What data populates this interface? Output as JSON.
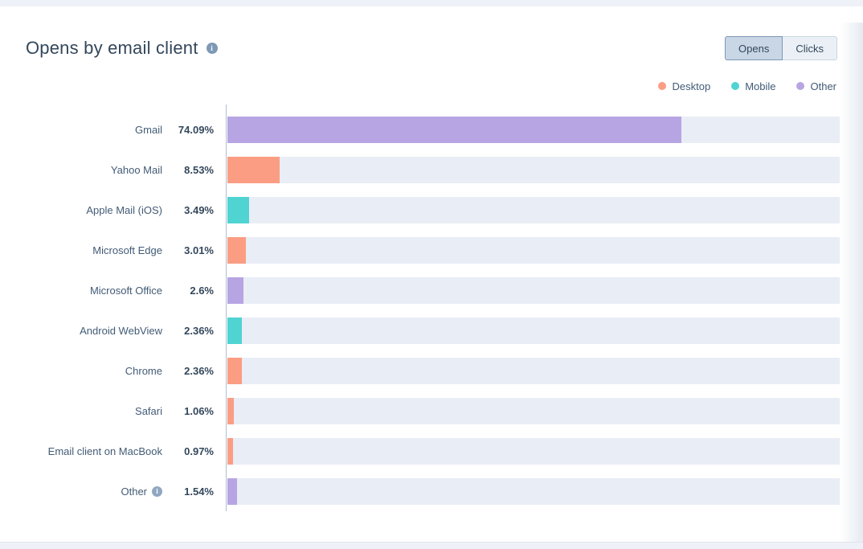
{
  "header": {
    "title": "Opens by email client"
  },
  "toggle": {
    "options": [
      {
        "label": "Opens",
        "selected": true
      },
      {
        "label": "Clicks",
        "selected": false
      }
    ]
  },
  "legend": [
    {
      "label": "Desktop",
      "series": "Desktop"
    },
    {
      "label": "Mobile",
      "series": "Mobile"
    },
    {
      "label": "Other",
      "series": "Other"
    }
  ],
  "colors": {
    "Desktop": "#fb9d83",
    "Mobile": "#4fd4d2",
    "Other": "#b7a5e3",
    "track": "#e9edf6",
    "selected_toggle_bg": "#c9d6e5",
    "text": "#33475b"
  },
  "chart_data": {
    "type": "bar",
    "orientation": "horizontal",
    "title": "Opens by email client",
    "xlim": [
      0,
      100
    ],
    "unit": "%",
    "grid": false,
    "legend_position": "top-right",
    "categories": [
      "Gmail",
      "Yahoo Mail",
      "Apple Mail (iOS)",
      "Microsoft Edge",
      "Microsoft Office",
      "Android WebView",
      "Chrome",
      "Safari",
      "Email client on MacBook",
      "Other"
    ],
    "values": [
      74.09,
      8.53,
      3.49,
      3.01,
      2.6,
      2.36,
      2.36,
      1.06,
      0.97,
      1.54
    ],
    "rows": [
      {
        "category": "Gmail",
        "value": 74.09,
        "value_label": "74.09%",
        "series": "Other",
        "info": false
      },
      {
        "category": "Yahoo Mail",
        "value": 8.53,
        "value_label": "8.53%",
        "series": "Desktop",
        "info": false
      },
      {
        "category": "Apple Mail (iOS)",
        "value": 3.49,
        "value_label": "3.49%",
        "series": "Mobile",
        "info": false
      },
      {
        "category": "Microsoft Edge",
        "value": 3.01,
        "value_label": "3.01%",
        "series": "Desktop",
        "info": false
      },
      {
        "category": "Microsoft Office",
        "value": 2.6,
        "value_label": "2.6%",
        "series": "Other",
        "info": false
      },
      {
        "category": "Android WebView",
        "value": 2.36,
        "value_label": "2.36%",
        "series": "Mobile",
        "info": false
      },
      {
        "category": "Chrome",
        "value": 2.36,
        "value_label": "2.36%",
        "series": "Desktop",
        "info": false
      },
      {
        "category": "Safari",
        "value": 1.06,
        "value_label": "1.06%",
        "series": "Desktop",
        "info": false
      },
      {
        "category": "Email client on MacBook",
        "value": 0.97,
        "value_label": "0.97%",
        "series": "Desktop",
        "info": false
      },
      {
        "category": "Other",
        "value": 1.54,
        "value_label": "1.54%",
        "series": "Other",
        "info": true
      }
    ],
    "icons": {
      "title_info": "info-icon",
      "other_row_info": "info-icon"
    }
  }
}
